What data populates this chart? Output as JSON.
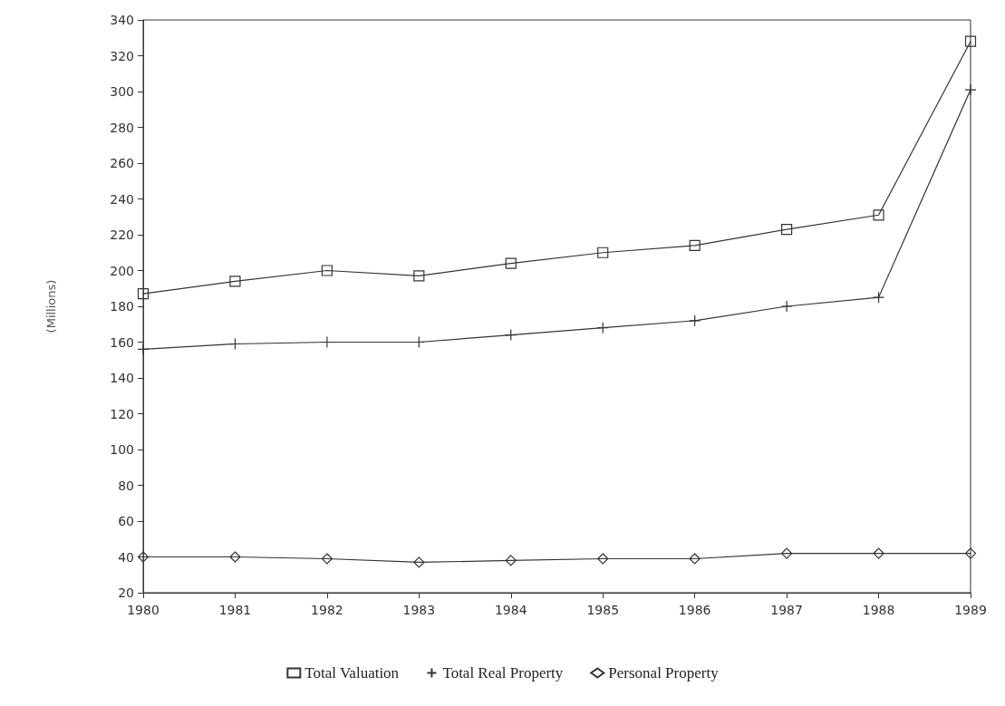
{
  "chart_data": {
    "type": "line",
    "ylabel": "(Millions)",
    "x": [
      1980,
      1981,
      1982,
      1983,
      1984,
      1985,
      1986,
      1987,
      1988,
      1989
    ],
    "xlim": [
      1980,
      1989
    ],
    "xticks": [
      1980,
      1981,
      1982,
      1983,
      1984,
      1985,
      1986,
      1987,
      1988,
      1989
    ],
    "ylim": [
      20,
      340
    ],
    "yticks": [
      20,
      40,
      60,
      80,
      100,
      120,
      140,
      160,
      180,
      200,
      220,
      240,
      260,
      280,
      300,
      320,
      340
    ],
    "grid": false,
    "legend": "bottom",
    "line_style": "solid",
    "series": [
      {
        "name": "Total Valuation",
        "color": "#333333",
        "marker": "square",
        "values": [
          187,
          194,
          200,
          197,
          204,
          210,
          214,
          223,
          231,
          328
        ]
      },
      {
        "name": "Total Real Property",
        "color": "#333333",
        "marker": "cross",
        "values": [
          156,
          159,
          160,
          160,
          164,
          168,
          172,
          180,
          185,
          301
        ]
      },
      {
        "name": "Personal Property",
        "color": "#333333",
        "marker": "diamond",
        "values": [
          40,
          40,
          39,
          37,
          38,
          39,
          39,
          42,
          42,
          42
        ]
      }
    ]
  }
}
